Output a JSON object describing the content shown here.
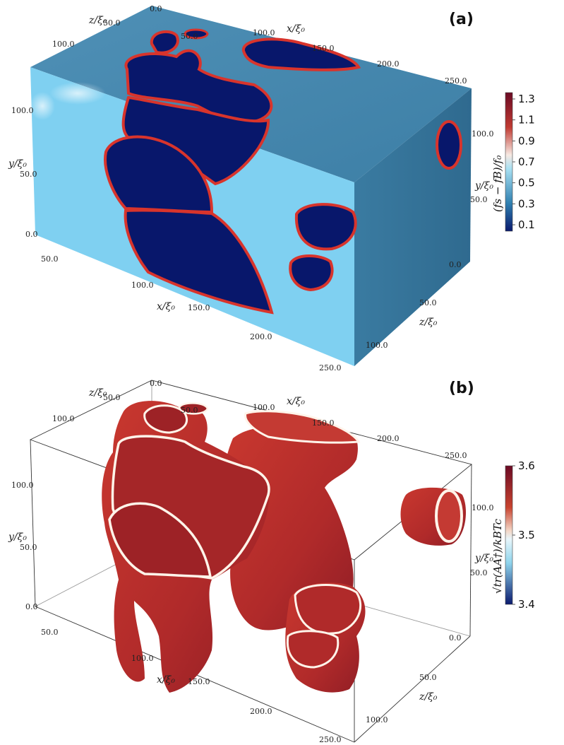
{
  "panels": [
    {
      "label": "(a)",
      "axes": {
        "x_label": "x/ξ₀",
        "y_label": "y/ξ₀",
        "z_label": "z/ξ₀",
        "x_ticks": [
          "0.0",
          "50.0",
          "100.0",
          "150.0",
          "200.0",
          "250.0"
        ],
        "y_ticks": [
          "0.0",
          "50.0",
          "100.0"
        ],
        "z_ticks": [
          "0.0",
          "50.0",
          "100.0"
        ]
      },
      "colorbar": {
        "label": "(fs − fB)/f₀",
        "ticks": [
          "1.3",
          "1.1",
          "0.9",
          "0.7",
          "0.5",
          "0.3",
          "0.1"
        ],
        "colors": [
          "#6b0a24",
          "#b52a2e",
          "#e8876a",
          "#f7e9e2",
          "#8fd4ec",
          "#2f7fb0",
          "#0a1a6e"
        ]
      }
    },
    {
      "label": "(b)",
      "axes": {
        "x_label": "x/ξ₀",
        "y_label": "y/ξ₀",
        "z_label": "z/ξ₀",
        "x_ticks": [
          "0.0",
          "50.0",
          "100.0",
          "150.0",
          "200.0",
          "250.0"
        ],
        "y_ticks": [
          "0.0",
          "50.0",
          "100.0"
        ],
        "z_ticks": [
          "0.0",
          "50.0",
          "100.0"
        ]
      },
      "colorbar": {
        "label": "√tr(AA†)/kBTc",
        "ticks": [
          "3.6",
          "3.5",
          "3.4"
        ],
        "colors": [
          "#6b0a24",
          "#c8432f",
          "#f4d8c8",
          "#f7f7f7",
          "#8fd4ec",
          "#2f6fa8",
          "#0a1a6e"
        ]
      }
    }
  ]
}
